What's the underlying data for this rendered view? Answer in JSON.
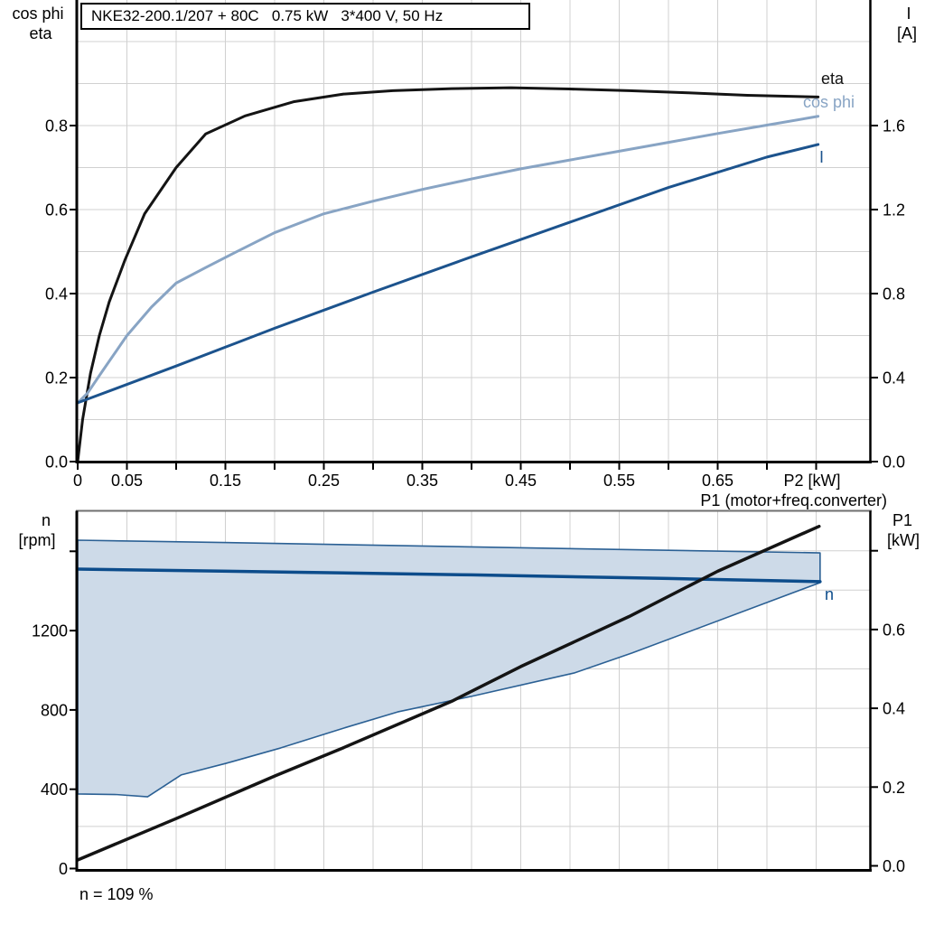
{
  "header": {
    "title": "NKE32-200.1/207 + 80C   0.75 kW   3*400 V, 50 Hz"
  },
  "top_chart": {
    "y_left_title_line1": "cos phi",
    "y_left_title_line2": "eta",
    "y_right_title_line1": "I",
    "y_right_title_line2": "[A]",
    "x_title": "P2 [kW]",
    "curve_labels": {
      "eta": "eta",
      "cos_phi": "cos phi",
      "current": "I"
    }
  },
  "bottom_chart": {
    "y_left_title_line1": "n",
    "y_left_title_line2": "[rpm]",
    "y_right_title_line1": "P1",
    "y_right_title_line2": "[kW]",
    "curve_labels": {
      "n": "n"
    },
    "p1_line_label": "P1 (motor+freq.converter)",
    "speed_note": "n = 109 %"
  },
  "colors": {
    "eta": "#141414",
    "cos_phi": "#88a4c4",
    "current": "#1c538d",
    "n_line": "#0c4c8b",
    "p1_line": "#141414",
    "region_fill": "#cddae8",
    "region_border": "#2b6094",
    "grid": "#d0d0d0",
    "axis": "#000000",
    "frame_top": "#6f6f6f"
  },
  "chart_data": [
    {
      "type": "line",
      "title": "NKE32-200.1/207 + 80C 0.75 kW 3*400 V, 50 Hz",
      "xlabel": "P2 [kW]",
      "x_range": [
        0,
        0.805
      ],
      "x_tick_labels": [
        {
          "v": 0,
          "t": "0"
        },
        {
          "v": 0.05,
          "t": "0.05"
        },
        {
          "v": 0.15,
          "t": "0.15"
        },
        {
          "v": 0.25,
          "t": "0.25"
        },
        {
          "v": 0.35,
          "t": "0.35"
        },
        {
          "v": 0.45,
          "t": "0.45"
        },
        {
          "v": 0.55,
          "t": "0.55"
        },
        {
          "v": 0.65,
          "t": "0.65"
        }
      ],
      "x_tick_marks": [
        0,
        0.05,
        0.1,
        0.15,
        0.2,
        0.25,
        0.3,
        0.35,
        0.4,
        0.45,
        0.5,
        0.55,
        0.6,
        0.65,
        0.7,
        0.75
      ],
      "y_left": {
        "label": "cos phi / eta",
        "range": [
          0,
          1.1
        ],
        "grid_step": 0.1,
        "ticks": [
          {
            "v": 0,
            "t": "0.0"
          },
          {
            "v": 0.2,
            "t": "0.2"
          },
          {
            "v": 0.4,
            "t": "0.4"
          },
          {
            "v": 0.6,
            "t": "0.6"
          },
          {
            "v": 0.8,
            "t": "0.8"
          }
        ]
      },
      "y_right": {
        "label": "I [A]",
        "range": [
          0,
          2.2
        ],
        "ticks": [
          {
            "v": 0,
            "t": "0.0"
          },
          {
            "v": 0.4,
            "t": "0.4"
          },
          {
            "v": 0.8,
            "t": "0.8"
          },
          {
            "v": 1.2,
            "t": "1.2"
          },
          {
            "v": 1.6,
            "t": "1.6"
          }
        ]
      },
      "legend_position": "inline-right",
      "grid": true,
      "series": [
        {
          "name": "eta",
          "axis": "left",
          "color_key": "eta",
          "points": [
            [
              0,
              0
            ],
            [
              0.005,
              0.1
            ],
            [
              0.013,
              0.21
            ],
            [
              0.022,
              0.3
            ],
            [
              0.032,
              0.38
            ],
            [
              0.048,
              0.48
            ],
            [
              0.068,
              0.59
            ],
            [
              0.1,
              0.7
            ],
            [
              0.13,
              0.78
            ],
            [
              0.17,
              0.823
            ],
            [
              0.22,
              0.857
            ],
            [
              0.27,
              0.875
            ],
            [
              0.32,
              0.883
            ],
            [
              0.38,
              0.888
            ],
            [
              0.44,
              0.89
            ],
            [
              0.5,
              0.887
            ],
            [
              0.56,
              0.883
            ],
            [
              0.62,
              0.878
            ],
            [
              0.68,
              0.872
            ],
            [
              0.752,
              0.868
            ]
          ]
        },
        {
          "name": "cos phi",
          "axis": "left",
          "color_key": "cos_phi",
          "points": [
            [
              0,
              0.14
            ],
            [
              0.01,
              0.163
            ],
            [
              0.025,
              0.215
            ],
            [
              0.05,
              0.3
            ],
            [
              0.075,
              0.368
            ],
            [
              0.1,
              0.425
            ],
            [
              0.13,
              0.462
            ],
            [
              0.16,
              0.498
            ],
            [
              0.2,
              0.545
            ],
            [
              0.25,
              0.59
            ],
            [
              0.3,
              0.62
            ],
            [
              0.35,
              0.648
            ],
            [
              0.4,
              0.673
            ],
            [
              0.45,
              0.697
            ],
            [
              0.5,
              0.718
            ],
            [
              0.55,
              0.739
            ],
            [
              0.6,
              0.76
            ],
            [
              0.65,
              0.781
            ],
            [
              0.7,
              0.801
            ],
            [
              0.752,
              0.822
            ]
          ]
        },
        {
          "name": "I",
          "axis": "right",
          "color_key": "current",
          "points": [
            [
              0,
              0.28
            ],
            [
              0.1,
              0.455
            ],
            [
              0.2,
              0.635
            ],
            [
              0.3,
              0.807
            ],
            [
              0.4,
              0.975
            ],
            [
              0.5,
              1.14
            ],
            [
              0.6,
              1.305
            ],
            [
              0.7,
              1.45
            ],
            [
              0.752,
              1.51
            ]
          ]
        }
      ]
    },
    {
      "type": "line",
      "xlabel": "",
      "x_range": [
        0,
        0.805
      ],
      "x_tick_marks": [],
      "y_left": {
        "label": "n [rpm]",
        "range": [
          0,
          1800
        ],
        "ticks": [
          {
            "v": 0,
            "t": "0"
          },
          {
            "v": 400,
            "t": "400"
          },
          {
            "v": 800,
            "t": "800"
          },
          {
            "v": 1200,
            "t": "1200"
          },
          {
            "v": 1600,
            "t": ""
          }
        ]
      },
      "y_right": {
        "label": "P1 [kW]",
        "range": [
          0,
          0.9
        ],
        "ticks": [
          {
            "v": 0,
            "t": "0.0"
          },
          {
            "v": 0.2,
            "t": "0.2"
          },
          {
            "v": 0.4,
            "t": "0.4"
          },
          {
            "v": 0.6,
            "t": "0.6"
          },
          {
            "v": 0.8,
            "t": ""
          }
        ]
      },
      "annotation": "n = 109 %",
      "grid": true,
      "series": [
        {
          "name": "speed operating range",
          "type": "area",
          "axis": "left",
          "color_key": "region_border",
          "fill_key": "region_fill",
          "upper": [
            [
              0,
              1656
            ],
            [
              0.2,
              1640
            ],
            [
              0.4,
              1622
            ],
            [
              0.6,
              1605
            ],
            [
              0.754,
              1592
            ]
          ],
          "lower": [
            [
              0,
              376
            ],
            [
              0.04,
              373
            ],
            [
              0.071,
              362
            ],
            [
              0.105,
              472
            ],
            [
              0.151,
              531
            ],
            [
              0.206,
              608
            ],
            [
              0.27,
              708
            ],
            [
              0.325,
              790
            ],
            [
              0.403,
              872
            ],
            [
              0.504,
              986
            ],
            [
              0.563,
              1087
            ],
            [
              0.754,
              1442
            ]
          ]
        },
        {
          "name": "n",
          "axis": "left",
          "color_key": "n_line",
          "points": [
            [
              0,
              1510
            ],
            [
              0.2,
              1496
            ],
            [
              0.4,
              1481
            ],
            [
              0.6,
              1463
            ],
            [
              0.754,
              1447
            ]
          ]
        },
        {
          "name": "P1 (motor+freq.converter)",
          "axis": "right",
          "color_key": "p1_line",
          "points": [
            [
              0,
              0.015
            ],
            [
              0.1,
              0.12
            ],
            [
              0.2,
              0.228
            ],
            [
              0.27,
              0.3
            ],
            [
              0.38,
              0.418
            ],
            [
              0.45,
              0.506
            ],
            [
              0.56,
              0.633
            ],
            [
              0.65,
              0.748
            ],
            [
              0.753,
              0.862
            ]
          ]
        }
      ]
    }
  ]
}
